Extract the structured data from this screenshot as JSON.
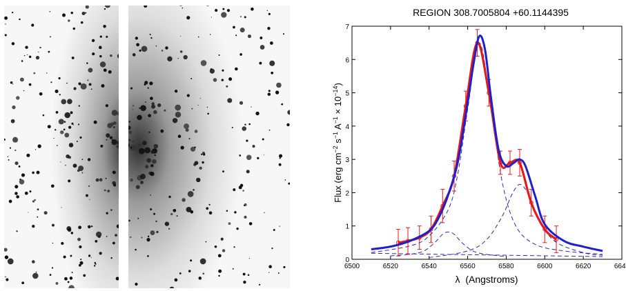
{
  "images": {
    "left_panel": {
      "kind": "galaxy-image",
      "palette": [
        "#ffffff",
        "#000000"
      ]
    },
    "right_panel": {
      "kind": "galaxy-image",
      "palette": [
        "#ffffff",
        "#000000"
      ]
    }
  },
  "chart_data": {
    "type": "line",
    "title": "REGION 308.7005804 +60.1144395",
    "xlabel_symbol": "λ",
    "xlabel_text": "(Angstroms)",
    "ylabel_parts": {
      "a": "Flux (erg cm",
      "a_sup": "−2",
      "b": " s",
      "b_sup": "−1",
      "c": " A",
      "c_sup": "−1",
      "d": " × 10",
      "d_sup": "−14",
      "e": ")"
    },
    "xlim": [
      6500,
      6640
    ],
    "ylim": [
      0,
      7
    ],
    "xticks": [
      "6500",
      "6520",
      "6540",
      "6560",
      "6580",
      "6600",
      "6620",
      "6640"
    ],
    "yticks": [
      "0",
      "1",
      "2",
      "3",
      "4",
      "5",
      "6",
      "7"
    ],
    "colors": {
      "data": "#e31a1c",
      "fit": "#1f1fcc",
      "components": "#2a2ab0",
      "axis": "#000000"
    },
    "series": [
      {
        "role": "observed-data",
        "style": "thick red line with error bars and open circles",
        "x": [
          6524,
          6529,
          6535,
          6541,
          6547,
          6553,
          6559,
          6565,
          6571,
          6577,
          6582,
          6587,
          6593,
          6600,
          6606
        ],
        "y": [
          0.5,
          0.55,
          0.65,
          0.9,
          1.6,
          2.5,
          4.6,
          6.5,
          5.0,
          2.9,
          2.9,
          2.9,
          1.7,
          0.9,
          0.6
        ],
        "yerr": [
          0.4,
          0.4,
          0.35,
          0.4,
          0.5,
          0.45,
          0.45,
          0.4,
          0.4,
          0.35,
          0.35,
          0.4,
          0.4,
          0.4,
          0.4
        ]
      },
      {
        "role": "total-fit",
        "style": "thick solid blue line",
        "x": [
          6510,
          6520,
          6530,
          6540,
          6545,
          6550,
          6555,
          6560,
          6563,
          6566,
          6569,
          6572,
          6576,
          6580,
          6584,
          6587,
          6590,
          6595,
          6600,
          6610,
          6620,
          6630
        ],
        "y": [
          0.3,
          0.38,
          0.55,
          0.85,
          1.25,
          1.95,
          2.95,
          4.7,
          5.85,
          6.7,
          6.3,
          4.9,
          3.3,
          2.8,
          2.9,
          3.0,
          2.8,
          1.9,
          1.05,
          0.55,
          0.38,
          0.25
        ]
      },
      {
        "role": "component-main",
        "style": "dashed blue line",
        "x": [
          6510,
          6530,
          6540,
          6550,
          6555,
          6560,
          6566,
          6572,
          6578,
          6585,
          6595,
          6610,
          6630
        ],
        "y": [
          0.2,
          0.4,
          0.7,
          1.5,
          2.6,
          4.5,
          6.5,
          4.6,
          2.3,
          1.0,
          0.45,
          0.25,
          0.15
        ]
      },
      {
        "role": "component-red",
        "style": "dashed blue line",
        "x": [
          6540,
          6560,
          6570,
          6578,
          6583,
          6587,
          6591,
          6596,
          6605,
          6620,
          6630
        ],
        "y": [
          0.05,
          0.25,
          0.6,
          1.3,
          1.95,
          2.25,
          2.0,
          1.3,
          0.55,
          0.2,
          0.12
        ]
      },
      {
        "role": "component-blue",
        "style": "dashed blue line",
        "x": [
          6520,
          6535,
          6542,
          6547,
          6550,
          6553,
          6558,
          6565,
          6580
        ],
        "y": [
          0.1,
          0.2,
          0.45,
          0.75,
          0.82,
          0.75,
          0.45,
          0.2,
          0.08
        ]
      },
      {
        "role": "continuum",
        "style": "dashed blue line",
        "x": [
          6510,
          6630
        ],
        "y": [
          0.18,
          0.08
        ]
      }
    ]
  }
}
